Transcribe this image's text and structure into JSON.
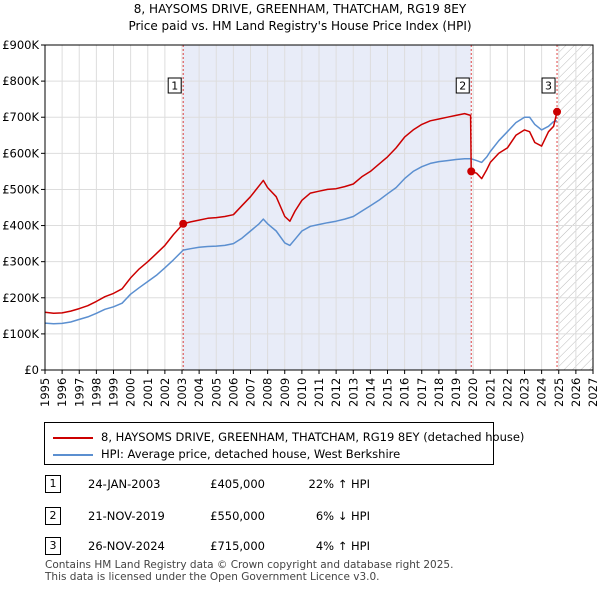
{
  "chart_data": {
    "type": "line",
    "title": "8, HAYSOMS DRIVE, GREENHAM, THATCHAM, RG19 8EY",
    "subtitle": "Price paid vs. HM Land Registry's House Price Index (HPI)",
    "xlim": [
      1995,
      2027
    ],
    "ylim": [
      0,
      900000
    ],
    "x_ticks": [
      1995,
      1996,
      1997,
      1998,
      1999,
      2000,
      2001,
      2002,
      2003,
      2004,
      2005,
      2006,
      2007,
      2008,
      2009,
      2010,
      2011,
      2012,
      2013,
      2014,
      2015,
      2016,
      2017,
      2018,
      2019,
      2020,
      2021,
      2022,
      2023,
      2024,
      2025,
      2026,
      2027
    ],
    "y_ticks": [
      {
        "value": 0,
        "label": "£0"
      },
      {
        "value": 100000,
        "label": "£100K"
      },
      {
        "value": 200000,
        "label": "£200K"
      },
      {
        "value": 300000,
        "label": "£300K"
      },
      {
        "value": 400000,
        "label": "£400K"
      },
      {
        "value": 500000,
        "label": "£500K"
      },
      {
        "value": 600000,
        "label": "£600K"
      },
      {
        "value": 700000,
        "label": "£700K"
      },
      {
        "value": 800000,
        "label": "£800K"
      },
      {
        "value": 900000,
        "label": "£900K"
      }
    ],
    "ownership_shading": {
      "from": 2003.07,
      "to": 2019.89
    },
    "future_hatch_from": 2025.0,
    "series": [
      {
        "name": "8, HAYSOMS DRIVE, GREENHAM, THATCHAM, RG19 8EY (detached house)",
        "color": "#cc0000",
        "points": [
          [
            1995.0,
            160000
          ],
          [
            1995.5,
            157000
          ],
          [
            1996.0,
            158000
          ],
          [
            1996.5,
            163000
          ],
          [
            1997.0,
            170000
          ],
          [
            1997.5,
            178000
          ],
          [
            1998.0,
            190000
          ],
          [
            1998.5,
            203000
          ],
          [
            1999.0,
            212000
          ],
          [
            1999.5,
            225000
          ],
          [
            2000.0,
            255000
          ],
          [
            2000.5,
            280000
          ],
          [
            2001.0,
            300000
          ],
          [
            2001.5,
            322000
          ],
          [
            2002.0,
            345000
          ],
          [
            2002.5,
            375000
          ],
          [
            2003.07,
            405000
          ],
          [
            2003.5,
            410000
          ],
          [
            2004.0,
            415000
          ],
          [
            2004.5,
            420000
          ],
          [
            2005.0,
            422000
          ],
          [
            2005.5,
            425000
          ],
          [
            2006.0,
            430000
          ],
          [
            2006.5,
            455000
          ],
          [
            2007.0,
            480000
          ],
          [
            2007.5,
            510000
          ],
          [
            2007.75,
            525000
          ],
          [
            2008.0,
            505000
          ],
          [
            2008.5,
            480000
          ],
          [
            2009.0,
            425000
          ],
          [
            2009.3,
            412000
          ],
          [
            2009.6,
            440000
          ],
          [
            2010.0,
            470000
          ],
          [
            2010.5,
            490000
          ],
          [
            2011.0,
            495000
          ],
          [
            2011.5,
            500000
          ],
          [
            2012.0,
            502000
          ],
          [
            2012.5,
            508000
          ],
          [
            2013.0,
            515000
          ],
          [
            2013.5,
            535000
          ],
          [
            2014.0,
            550000
          ],
          [
            2014.5,
            570000
          ],
          [
            2015.0,
            590000
          ],
          [
            2015.5,
            615000
          ],
          [
            2016.0,
            645000
          ],
          [
            2016.5,
            665000
          ],
          [
            2017.0,
            680000
          ],
          [
            2017.5,
            690000
          ],
          [
            2018.0,
            695000
          ],
          [
            2018.5,
            700000
          ],
          [
            2019.0,
            705000
          ],
          [
            2019.5,
            710000
          ],
          [
            2019.85,
            705000
          ],
          [
            2019.89,
            550000
          ],
          [
            2020.2,
            545000
          ],
          [
            2020.5,
            530000
          ],
          [
            2020.8,
            555000
          ],
          [
            2021.0,
            575000
          ],
          [
            2021.5,
            600000
          ],
          [
            2022.0,
            615000
          ],
          [
            2022.5,
            650000
          ],
          [
            2023.0,
            665000
          ],
          [
            2023.3,
            660000
          ],
          [
            2023.6,
            630000
          ],
          [
            2024.0,
            620000
          ],
          [
            2024.4,
            660000
          ],
          [
            2024.7,
            675000
          ],
          [
            2024.9,
            715000
          ]
        ]
      },
      {
        "name": "HPI: Average price, detached house, West Berkshire",
        "color": "#5b8fd0",
        "points": [
          [
            1995.0,
            130000
          ],
          [
            1995.5,
            128000
          ],
          [
            1996.0,
            129000
          ],
          [
            1996.5,
            133000
          ],
          [
            1997.0,
            140000
          ],
          [
            1997.5,
            147000
          ],
          [
            1998.0,
            157000
          ],
          [
            1998.5,
            168000
          ],
          [
            1999.0,
            175000
          ],
          [
            1999.5,
            185000
          ],
          [
            2000.0,
            210000
          ],
          [
            2000.5,
            228000
          ],
          [
            2001.0,
            245000
          ],
          [
            2001.5,
            262000
          ],
          [
            2002.0,
            283000
          ],
          [
            2002.5,
            305000
          ],
          [
            2003.07,
            332000
          ],
          [
            2003.5,
            336000
          ],
          [
            2004.0,
            340000
          ],
          [
            2004.5,
            342000
          ],
          [
            2005.0,
            343000
          ],
          [
            2005.5,
            345000
          ],
          [
            2006.0,
            350000
          ],
          [
            2006.5,
            365000
          ],
          [
            2007.0,
            385000
          ],
          [
            2007.5,
            405000
          ],
          [
            2007.75,
            418000
          ],
          [
            2008.0,
            405000
          ],
          [
            2008.5,
            385000
          ],
          [
            2009.0,
            352000
          ],
          [
            2009.3,
            345000
          ],
          [
            2009.6,
            362000
          ],
          [
            2010.0,
            385000
          ],
          [
            2010.5,
            398000
          ],
          [
            2011.0,
            403000
          ],
          [
            2011.5,
            408000
          ],
          [
            2012.0,
            412000
          ],
          [
            2012.5,
            418000
          ],
          [
            2013.0,
            425000
          ],
          [
            2013.5,
            440000
          ],
          [
            2014.0,
            455000
          ],
          [
            2014.5,
            470000
          ],
          [
            2015.0,
            488000
          ],
          [
            2015.5,
            505000
          ],
          [
            2016.0,
            530000
          ],
          [
            2016.5,
            550000
          ],
          [
            2017.0,
            563000
          ],
          [
            2017.5,
            572000
          ],
          [
            2018.0,
            577000
          ],
          [
            2018.5,
            580000
          ],
          [
            2019.0,
            583000
          ],
          [
            2019.5,
            585000
          ],
          [
            2019.89,
            585000
          ],
          [
            2020.2,
            580000
          ],
          [
            2020.5,
            575000
          ],
          [
            2020.8,
            590000
          ],
          [
            2021.0,
            605000
          ],
          [
            2021.5,
            635000
          ],
          [
            2022.0,
            660000
          ],
          [
            2022.5,
            685000
          ],
          [
            2023.0,
            700000
          ],
          [
            2023.3,
            700000
          ],
          [
            2023.6,
            680000
          ],
          [
            2024.0,
            665000
          ],
          [
            2024.4,
            675000
          ],
          [
            2024.7,
            688000
          ],
          [
            2024.9,
            690000
          ]
        ]
      }
    ],
    "markers": [
      {
        "label": "1",
        "x": 2003.07,
        "y": 405000
      },
      {
        "label": "2",
        "x": 2019.89,
        "y": 550000
      },
      {
        "label": "3",
        "x": 2024.9,
        "y": 715000
      }
    ]
  },
  "legend": {
    "items": [
      {
        "label": "8, HAYSOMS DRIVE, GREENHAM, THATCHAM, RG19 8EY (detached house)",
        "color": "#cc0000"
      },
      {
        "label": "HPI: Average price, detached house, West Berkshire",
        "color": "#5b8fd0"
      }
    ]
  },
  "transactions": [
    {
      "num": "1",
      "date": "24-JAN-2003",
      "price": "£405,000",
      "hpi": "22% ↑ HPI"
    },
    {
      "num": "2",
      "date": "21-NOV-2019",
      "price": "£550,000",
      "hpi": "6% ↓ HPI"
    },
    {
      "num": "3",
      "date": "26-NOV-2024",
      "price": "£715,000",
      "hpi": "4% ↑ HPI"
    }
  ],
  "footer": {
    "line1": "Contains HM Land Registry data © Crown copyright and database right 2025.",
    "line2": "This data is licensed under the Open Government Licence v3.0."
  }
}
